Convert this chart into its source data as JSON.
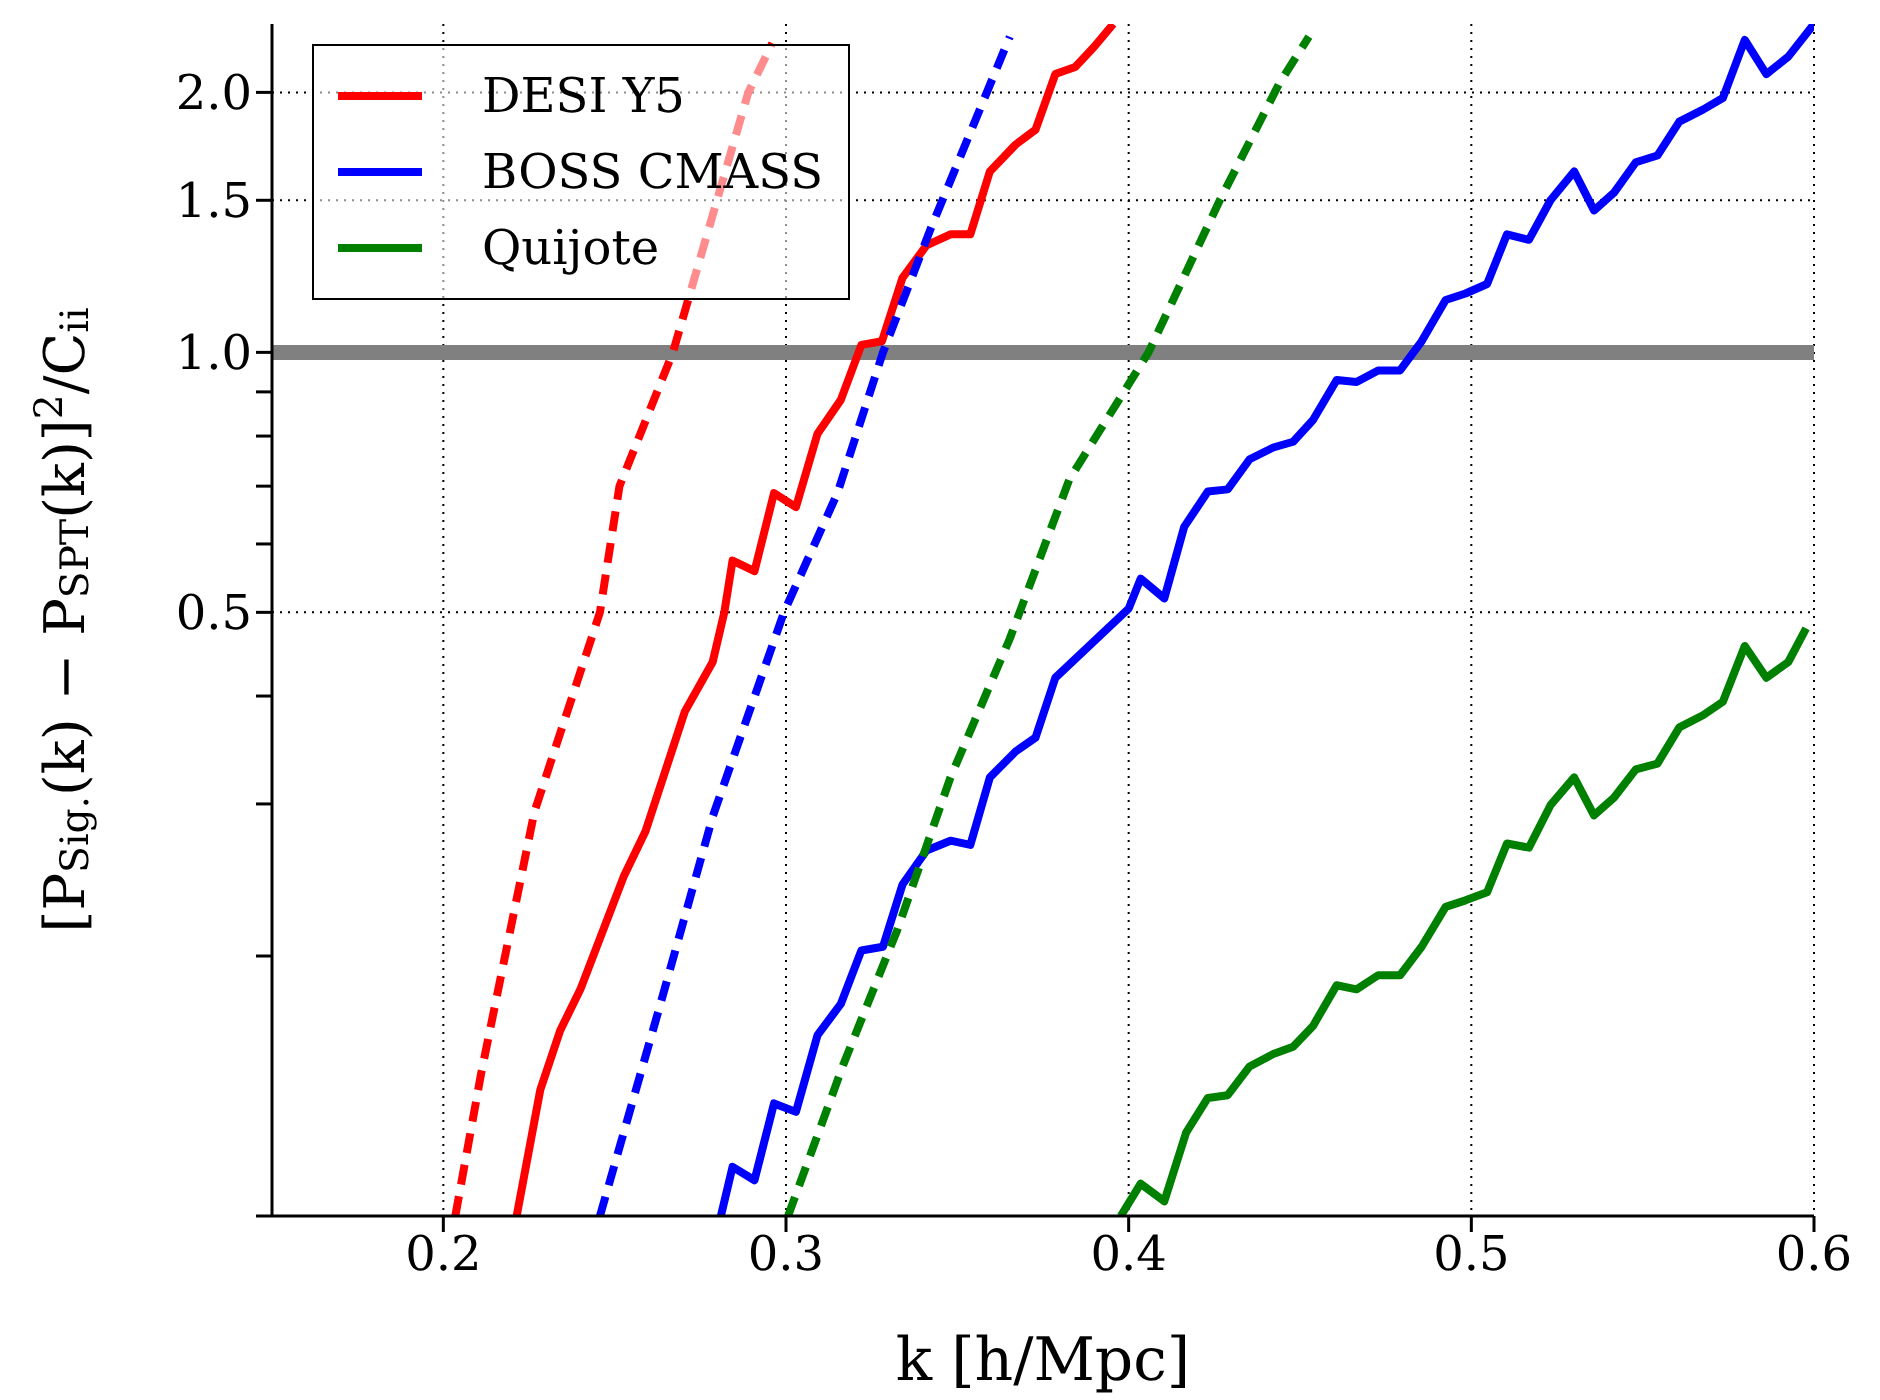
{
  "chart_data": {
    "type": "line",
    "xlabel": "k [h/Mpc]",
    "ylabel": "[P$_{Sig.}$(k) − P$_{SPT}$(k)]$^{2}$/C$_{ii}$",
    "xlim": [
      0.15,
      0.6
    ],
    "xticks": [
      0.2,
      0.3,
      0.4,
      0.5,
      0.6
    ],
    "ylim": [
      0.1,
      2.4
    ],
    "log": "y",
    "yticks": [
      {
        "value": 0.1,
        "label": null
      },
      {
        "value": 0.2,
        "label": null
      },
      {
        "value": 0.3,
        "label": null
      },
      {
        "value": 0.4,
        "label": null
      },
      {
        "value": 0.5,
        "label": "0.5"
      },
      {
        "value": 0.6,
        "label": null
      },
      {
        "value": 0.7,
        "label": null
      },
      {
        "value": 0.8,
        "label": null
      },
      {
        "value": 0.9,
        "label": null
      },
      {
        "value": 1.0,
        "label": "1.0"
      },
      {
        "value": 1.5,
        "label": "1.5"
      },
      {
        "value": 2.0,
        "label": "2.0"
      }
    ],
    "grid": true,
    "legend": "top left",
    "bands": [
      {
        "axis": "y",
        "from": 0.98,
        "to": 1.02,
        "color": "#808080"
      }
    ],
    "series": [
      {
        "name": "DESI Y5",
        "color": "#ff0000",
        "line_style": "solid",
        "x": [
          0.2214,
          0.2283,
          0.2341,
          0.24,
          0.2526,
          0.259,
          0.2705,
          0.2786,
          0.282,
          0.2844,
          0.2908,
          0.2965,
          0.3029,
          0.3092,
          0.316,
          0.322,
          0.328,
          0.334,
          0.341,
          0.348,
          0.3538,
          0.3595,
          0.367,
          0.3728,
          0.3786,
          0.3844,
          0.39,
          0.3955
        ],
        "values": [
          0.1,
          0.14,
          0.164,
          0.183,
          0.247,
          0.279,
          0.384,
          0.438,
          0.5,
          0.574,
          0.558,
          0.687,
          0.662,
          0.805,
          0.881,
          1.02,
          1.03,
          1.22,
          1.33,
          1.37,
          1.37,
          1.62,
          1.74,
          1.81,
          2.1,
          2.14,
          2.26,
          2.4
        ]
      },
      {
        "name": "BOSS CMASS",
        "color": "#0000ff",
        "line_style": "solid",
        "x": [
          0.281,
          0.2844,
          0.2908,
          0.2965,
          0.3029,
          0.3092,
          0.316,
          0.322,
          0.3283,
          0.334,
          0.341,
          0.348,
          0.3538,
          0.3595,
          0.367,
          0.3728,
          0.3786,
          0.4,
          0.4035,
          0.4104,
          0.4162,
          0.4231,
          0.4289,
          0.4353,
          0.4422,
          0.448,
          0.4538,
          0.4607,
          0.4665,
          0.4728,
          0.4792,
          0.4855,
          0.4925,
          0.4983,
          0.5046,
          0.5104,
          0.5168,
          0.5231,
          0.53,
          0.5358,
          0.5416,
          0.548,
          0.5543,
          0.5607,
          0.5676,
          0.5734,
          0.5798,
          0.5861,
          0.5925,
          0.6
        ],
        "values": [
          0.1,
          0.114,
          0.11,
          0.135,
          0.132,
          0.162,
          0.176,
          0.203,
          0.205,
          0.242,
          0.265,
          0.272,
          0.269,
          0.322,
          0.345,
          0.358,
          0.42,
          0.505,
          0.547,
          0.519,
          0.628,
          0.69,
          0.694,
          0.752,
          0.776,
          0.788,
          0.835,
          0.929,
          0.924,
          0.953,
          0.953,
          1.03,
          1.15,
          1.17,
          1.2,
          1.37,
          1.35,
          1.5,
          1.62,
          1.46,
          1.53,
          1.66,
          1.69,
          1.85,
          1.91,
          1.97,
          2.3,
          2.1,
          2.2,
          2.4
        ]
      },
      {
        "name": "Quijote",
        "color": "#008000",
        "line_style": "solid",
        "x": [
          0.3977,
          0.4035,
          0.4104,
          0.4168,
          0.4231,
          0.4289,
          0.4353,
          0.4422,
          0.448,
          0.4538,
          0.4607,
          0.4665,
          0.4728,
          0.4792,
          0.4855,
          0.4925,
          0.4983,
          0.5046,
          0.5104,
          0.5168,
          0.5231,
          0.53,
          0.5358,
          0.5416,
          0.548,
          0.5543,
          0.5607,
          0.5676,
          0.5734,
          0.5798,
          0.5861,
          0.5925,
          0.5977
        ],
        "values": [
          0.1,
          0.109,
          0.104,
          0.125,
          0.137,
          0.138,
          0.149,
          0.154,
          0.157,
          0.166,
          0.185,
          0.183,
          0.19,
          0.19,
          0.205,
          0.228,
          0.232,
          0.237,
          0.27,
          0.267,
          0.299,
          0.322,
          0.291,
          0.305,
          0.329,
          0.334,
          0.368,
          0.38,
          0.394,
          0.457,
          0.42,
          0.438,
          0.479
        ]
      },
      {
        "color": "#ff0000",
        "line_style": "dashed",
        "x": [
          0.2035,
          0.211,
          0.2266,
          0.2457,
          0.2514,
          0.267,
          0.289,
          0.296
        ],
        "values": [
          0.1,
          0.146,
          0.294,
          0.5,
          0.7,
          1.0,
          2.0,
          2.28
        ]
      },
      {
        "color": "#0000ff",
        "line_style": "dashed",
        "x": [
          0.2457,
          0.263,
          0.2786,
          0.2994,
          0.315,
          0.3283,
          0.3422,
          0.3653
        ],
        "values": [
          0.1,
          0.174,
          0.29,
          0.5,
          0.687,
          1.0,
          1.39,
          2.32
        ]
      },
      {
        "color": "#008000",
        "line_style": "dashed",
        "x": [
          0.3006,
          0.3168,
          0.3324,
          0.348,
          0.3653,
          0.3827,
          0.4058,
          0.4266,
          0.444,
          0.4526
        ],
        "values": [
          0.1,
          0.15,
          0.214,
          0.322,
          0.466,
          0.713,
          1.0,
          1.5,
          2.05,
          2.32
        ]
      }
    ]
  }
}
